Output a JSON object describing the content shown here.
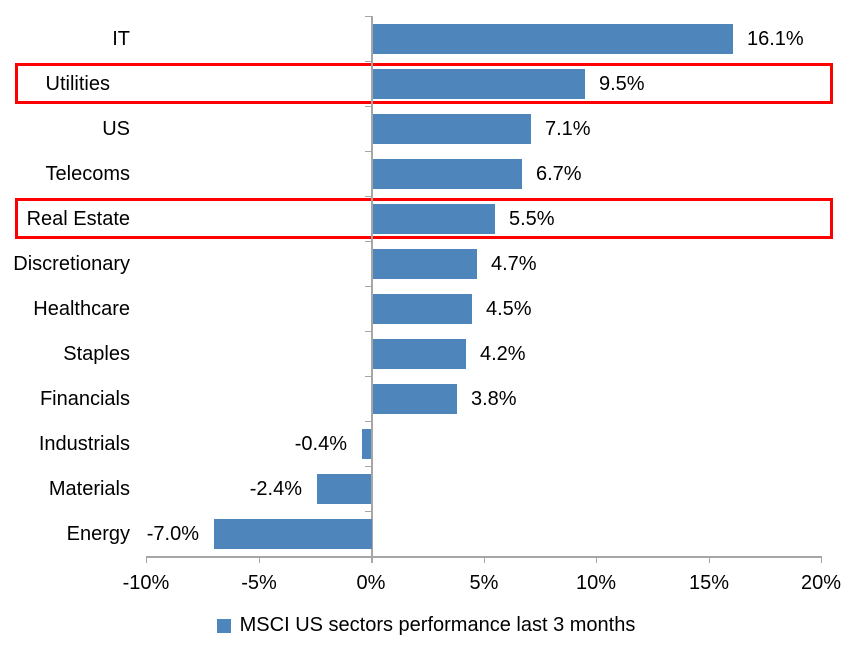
{
  "chart_data": {
    "type": "bar",
    "orientation": "horizontal",
    "title": "",
    "categories": [
      "IT",
      "Utilities",
      "US",
      "Telecoms",
      "Real Estate",
      "Discretionary",
      "Healthcare",
      "Staples",
      "Financials",
      "Industrials",
      "Materials",
      "Energy"
    ],
    "values": [
      16.1,
      9.5,
      7.1,
      6.7,
      5.5,
      4.7,
      4.5,
      4.2,
      3.8,
      -0.4,
      -2.4,
      -7.0
    ],
    "value_labels": [
      "16.1%",
      "9.5%",
      "7.1%",
      "6.7%",
      "5.5%",
      "4.7%",
      "4.5%",
      "4.2%",
      "3.8%",
      "-0.4%",
      "-2.4%",
      "-7.0%"
    ],
    "highlighted_categories": [
      "Utilities",
      "Real Estate"
    ],
    "x_tick_labels": [
      "-10%",
      "-5%",
      "0%",
      "5%",
      "10%",
      "15%",
      "20%"
    ],
    "x_tick_values": [
      -10,
      -5,
      0,
      5,
      10,
      15,
      20
    ],
    "xlim": [
      -10,
      20
    ],
    "grid": "off",
    "legend_position": "bottom-center",
    "legend": {
      "marker": "square",
      "label": "MSCI US sectors performance last 3 months"
    },
    "colors": {
      "bar": "#4e86bc",
      "highlight_border": "#ff0000",
      "axis": "#a6a6a6",
      "text": "#000000",
      "background": "#ffffff"
    }
  }
}
